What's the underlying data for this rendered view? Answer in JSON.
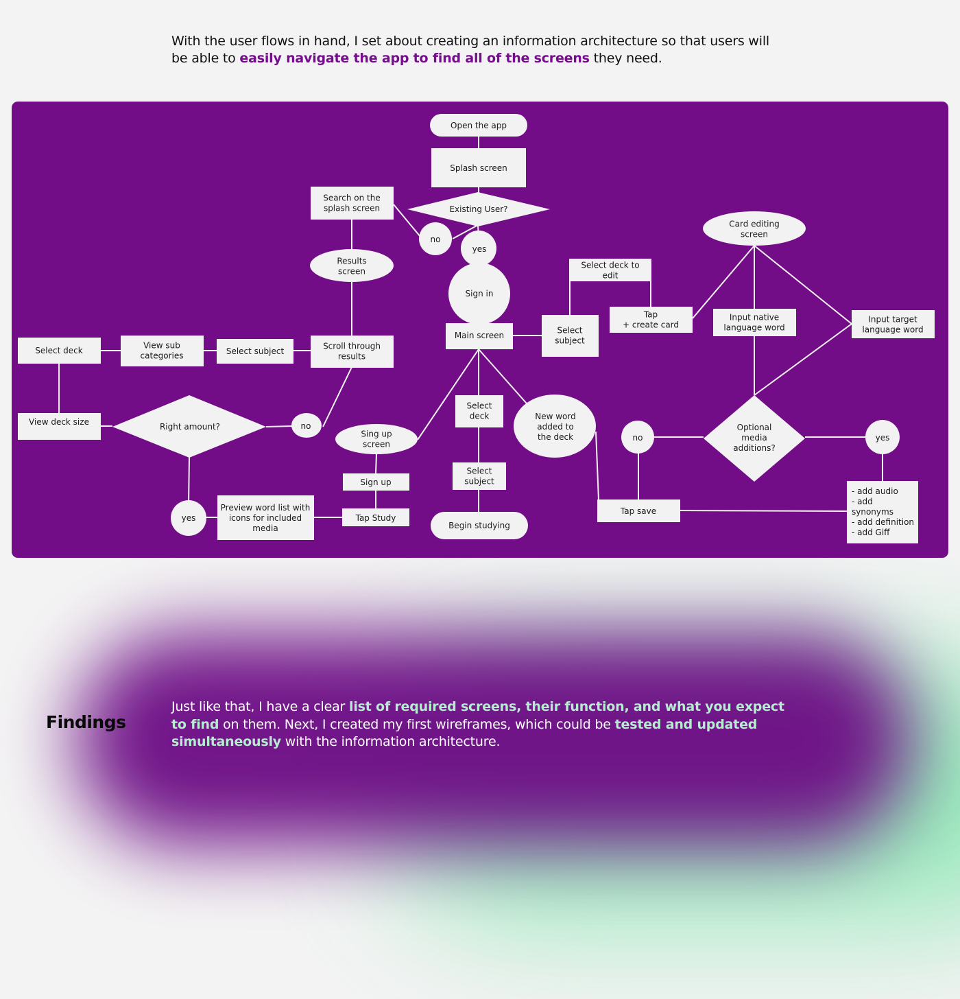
{
  "intro": {
    "part1": "With the user flows in hand, I set about creating an information architecture so that users will be able to ",
    "highlight": "easily navigate the app to find all of the screens",
    "part2": " they need."
  },
  "diagram": {
    "nodes": {
      "open_app": "Open the app",
      "splash": "Splash screen",
      "existing_user": "Existing User?",
      "search_splash": [
        "Search on the",
        "splash screen"
      ],
      "no_top": "no",
      "yes_top": "yes",
      "results": [
        "Results",
        "screen"
      ],
      "sign_in": "Sign in",
      "main": "Main screen",
      "select_subject_r": [
        "Select",
        "subject"
      ],
      "select_deck_edit": [
        "Select deck to",
        "edit"
      ],
      "tap_create": [
        "Tap",
        "+ create card"
      ],
      "card_editing": [
        "Card editing",
        "screen"
      ],
      "input_native": [
        "Input native",
        "language word"
      ],
      "input_target": [
        "Input target",
        "language word"
      ],
      "optional_media": [
        "Optional",
        "media",
        "additions?"
      ],
      "no_media": "no",
      "yes_media": "yes",
      "media_list": [
        "- add audio",
        "- add",
        "synonyms",
        "- add definition",
        "- add Giff"
      ],
      "tap_save": "Tap save",
      "select_deck_l": "Select deck",
      "view_sub": [
        "View sub",
        "categories"
      ],
      "select_subject_l": "Select subject",
      "scroll_results": [
        "Scroll through",
        "results"
      ],
      "view_deck_size": "View deck size",
      "right_amount": "Right amount?",
      "no_amount": "no",
      "yes_amount": "yes",
      "preview": [
        "Preview word list with",
        "icons for included",
        "media"
      ],
      "sing_up_screen": [
        "Sing up",
        "screen"
      ],
      "sign_up": "Sign up",
      "tap_study": "Tap Study",
      "select_deck_c": [
        "Select",
        "deck"
      ],
      "select_subject_c": [
        "Select",
        "subject"
      ],
      "begin_studying": "Begin studying",
      "new_word": [
        "New word",
        "added to",
        "the deck"
      ]
    }
  },
  "findings": {
    "title": "Findings",
    "part1": "Just like that, I have a clear ",
    "highlight1": "list of required screens, their function, and what you expect to find",
    "part2": " on them. Next, I created my first wireframes, which could be ",
    "highlight2": "tested and updated simultaneously",
    "part3": " with the information architecture."
  },
  "colors": {
    "board": "#720c87",
    "node_fill": "#f2f2f2",
    "accent_purple": "#760d8e",
    "accent_green": "#b6ecd0"
  }
}
